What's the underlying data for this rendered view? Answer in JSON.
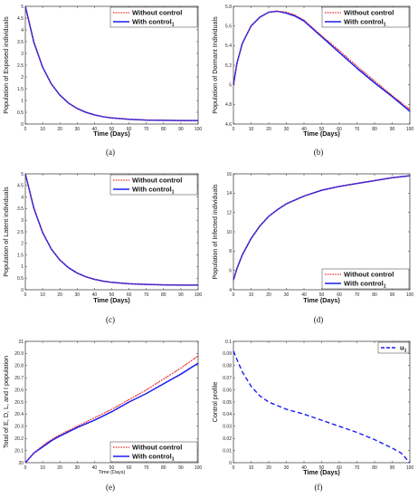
{
  "chart_data": [
    {
      "panel": "(a)",
      "type": "line",
      "xlabel": "Time (Days)",
      "ylabel": "Population of Exposed individuals",
      "xlim": [
        0,
        100
      ],
      "ylim": [
        0,
        5
      ],
      "xticks": [
        "0",
        "10",
        "20",
        "30",
        "40",
        "50",
        "60",
        "70",
        "80",
        "90",
        "100"
      ],
      "yticks": [
        "0",
        "0.5",
        "1",
        "1.5",
        "2",
        "2.5",
        "3",
        "3.5",
        "4",
        "4.5",
        "5"
      ],
      "legend_position": "top-right",
      "series": [
        {
          "name": "Without control",
          "color": "#e8322f",
          "style": "dotted",
          "x": [
            0,
            5,
            10,
            15,
            20,
            25,
            30,
            35,
            40,
            45,
            50,
            60,
            70,
            80,
            90,
            100
          ],
          "y": [
            5.0,
            3.46,
            2.42,
            1.71,
            1.23,
            0.89,
            0.66,
            0.5,
            0.39,
            0.31,
            0.26,
            0.2,
            0.17,
            0.16,
            0.15,
            0.15
          ]
        },
        {
          "name": "With control",
          "sub": "1",
          "color": "#1c1cf0",
          "style": "solid",
          "x": [
            0,
            5,
            10,
            15,
            20,
            25,
            30,
            35,
            40,
            45,
            50,
            60,
            70,
            80,
            90,
            100
          ],
          "y": [
            5.0,
            3.46,
            2.42,
            1.71,
            1.23,
            0.89,
            0.66,
            0.5,
            0.39,
            0.31,
            0.26,
            0.2,
            0.17,
            0.16,
            0.15,
            0.15
          ]
        }
      ]
    },
    {
      "panel": "(b)",
      "type": "line",
      "xlabel": "Time (Days)",
      "ylabel": "Population of Dormant Individuals",
      "xlim": [
        0,
        100
      ],
      "ylim": [
        4.6,
        5.8
      ],
      "xticks": [
        "0",
        "10",
        "20",
        "30",
        "40",
        "50",
        "60",
        "70",
        "80",
        "90",
        "100"
      ],
      "yticks": [
        "4.6",
        "4.8",
        "5",
        "5.2",
        "5.4",
        "5.6",
        "5.8"
      ],
      "legend_position": "top-right",
      "series": [
        {
          "name": "Without control",
          "color": "#e8322f",
          "style": "dotted",
          "x": [
            0,
            2,
            5,
            10,
            15,
            20,
            25,
            30,
            35,
            40,
            50,
            60,
            70,
            80,
            90,
            100
          ],
          "y": [
            5.0,
            5.22,
            5.42,
            5.6,
            5.69,
            5.74,
            5.75,
            5.74,
            5.71,
            5.66,
            5.5,
            5.35,
            5.19,
            5.04,
            4.89,
            4.75
          ]
        },
        {
          "name": "With control",
          "sub": "1",
          "color": "#1c1cf0",
          "style": "solid",
          "x": [
            0,
            2,
            5,
            10,
            15,
            20,
            25,
            30,
            35,
            40,
            50,
            60,
            70,
            80,
            90,
            100
          ],
          "y": [
            5.0,
            5.22,
            5.42,
            5.6,
            5.69,
            5.74,
            5.75,
            5.73,
            5.7,
            5.65,
            5.49,
            5.33,
            5.17,
            5.02,
            4.88,
            4.73
          ]
        }
      ]
    },
    {
      "panel": "(c)",
      "type": "line",
      "xlabel": "Time (Days)",
      "ylabel": "Population of Latent individuals",
      "xlim": [
        0,
        100
      ],
      "ylim": [
        0,
        5
      ],
      "xticks": [
        "0",
        "10",
        "20",
        "30",
        "40",
        "50",
        "60",
        "70",
        "80",
        "90",
        "100"
      ],
      "yticks": [
        "0",
        "0.5",
        "1",
        "1.5",
        "2",
        "2.5",
        "3",
        "3.5",
        "4",
        "4.5",
        "5"
      ],
      "legend_position": "top-right",
      "series": [
        {
          "name": "Without control",
          "color": "#e8322f",
          "style": "dotted",
          "x": [
            0,
            5,
            10,
            15,
            20,
            25,
            30,
            35,
            40,
            45,
            50,
            60,
            70,
            80,
            90,
            100
          ],
          "y": [
            5.0,
            3.5,
            2.47,
            1.76,
            1.28,
            0.95,
            0.72,
            0.56,
            0.45,
            0.37,
            0.32,
            0.26,
            0.23,
            0.21,
            0.2,
            0.2
          ]
        },
        {
          "name": "With control",
          "sub": "1",
          "color": "#1c1cf0",
          "style": "solid",
          "x": [
            0,
            5,
            10,
            15,
            20,
            25,
            30,
            35,
            40,
            45,
            50,
            60,
            70,
            80,
            90,
            100
          ],
          "y": [
            5.0,
            3.5,
            2.47,
            1.76,
            1.28,
            0.95,
            0.72,
            0.56,
            0.45,
            0.37,
            0.32,
            0.26,
            0.23,
            0.21,
            0.2,
            0.2
          ]
        }
      ]
    },
    {
      "panel": "(d)",
      "type": "line",
      "xlabel": "Time (Days)",
      "ylabel": "Population of Infected individuals",
      "xlim": [
        0,
        100
      ],
      "ylim": [
        4,
        16
      ],
      "xticks": [
        "0",
        "10",
        "20",
        "30",
        "40",
        "50",
        "60",
        "70",
        "80",
        "90",
        "100"
      ],
      "yticks": [
        "4",
        "6",
        "8",
        "10",
        "12",
        "14",
        "16"
      ],
      "legend_position": "bottom-right",
      "series": [
        {
          "name": "Without control",
          "color": "#e8322f",
          "style": "dotted",
          "x": [
            0,
            2,
            5,
            10,
            15,
            20,
            25,
            30,
            40,
            50,
            60,
            70,
            80,
            90,
            100
          ],
          "y": [
            5.0,
            6.2,
            7.6,
            9.3,
            10.6,
            11.6,
            12.3,
            12.9,
            13.7,
            14.3,
            14.7,
            15.0,
            15.3,
            15.6,
            15.8
          ]
        },
        {
          "name": "With control",
          "sub": "1",
          "color": "#1c1cf0",
          "style": "solid",
          "x": [
            0,
            2,
            5,
            10,
            15,
            20,
            25,
            30,
            40,
            50,
            60,
            70,
            80,
            90,
            100
          ],
          "y": [
            5.0,
            6.2,
            7.6,
            9.3,
            10.6,
            11.6,
            12.3,
            12.9,
            13.7,
            14.3,
            14.7,
            15.0,
            15.3,
            15.6,
            15.8
          ]
        }
      ]
    },
    {
      "panel": "(e)",
      "type": "line",
      "xlabel": "Time (Days)",
      "ylabel": "Total of E, D, L, and I population",
      "xlim": [
        0,
        100
      ],
      "ylim": [
        20,
        21
      ],
      "xticks": [
        "0",
        "10",
        "20",
        "30",
        "40",
        "50",
        "60",
        "70",
        "80",
        "90",
        "100"
      ],
      "yticks": [
        "20",
        "20.1",
        "20.2",
        "20.3",
        "20.4",
        "20.5",
        "20.6",
        "20.7",
        "20.8",
        "20.9",
        "21"
      ],
      "legend_position": "bottom-right",
      "series": [
        {
          "name": "Without control",
          "color": "#e8322f",
          "style": "dotted",
          "x": [
            0,
            5,
            10,
            15,
            20,
            30,
            40,
            50,
            60,
            70,
            80,
            90,
            100
          ],
          "y": [
            20.0,
            20.08,
            20.14,
            20.19,
            20.23,
            20.3,
            20.37,
            20.44,
            20.52,
            20.6,
            20.69,
            20.78,
            20.88
          ]
        },
        {
          "name": "With control",
          "sub": "1",
          "color": "#1c1cf0",
          "style": "solid",
          "x": [
            0,
            5,
            10,
            15,
            20,
            30,
            40,
            50,
            60,
            70,
            80,
            90,
            100
          ],
          "y": [
            20.0,
            20.08,
            20.13,
            20.18,
            20.22,
            20.29,
            20.35,
            20.42,
            20.5,
            20.57,
            20.65,
            20.73,
            20.82
          ]
        }
      ]
    },
    {
      "panel": "(f)",
      "type": "line",
      "xlabel": "Time (Days)",
      "ylabel": "Control profile",
      "xlim": [
        0,
        100
      ],
      "ylim": [
        0,
        0.1
      ],
      "xticks": [
        "0",
        "10",
        "20",
        "30",
        "40",
        "50",
        "60",
        "70",
        "80",
        "90",
        "100"
      ],
      "yticks": [
        "0",
        "0.01",
        "0.02",
        "0.03",
        "0.04",
        "0.05",
        "0.06",
        "0.07",
        "0.08",
        "0.09",
        "0.1"
      ],
      "legend_position": "top-right",
      "series": [
        {
          "name": "u",
          "sub": "1",
          "color": "#1c1cf0",
          "style": "dashed",
          "x": [
            0,
            2,
            5,
            10,
            15,
            20,
            25,
            30,
            40,
            50,
            60,
            70,
            80,
            90,
            95,
            100
          ],
          "y": [
            0.092,
            0.085,
            0.075,
            0.063,
            0.055,
            0.05,
            0.047,
            0.044,
            0.04,
            0.035,
            0.03,
            0.025,
            0.019,
            0.012,
            0.008,
            0.0
          ]
        }
      ]
    }
  ]
}
